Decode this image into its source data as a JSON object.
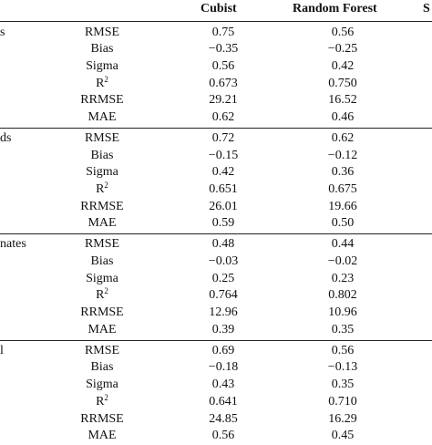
{
  "columns": [
    "Cubist",
    "Random Forest",
    "S"
  ],
  "groups": [
    {
      "label": "s",
      "rows": [
        {
          "metric": "RMSE",
          "cubist": "0.75",
          "rf": "0.56"
        },
        {
          "metric": "Bias",
          "cubist": "−0.35",
          "rf": "−0.25"
        },
        {
          "metric": "Sigma",
          "cubist": "0.56",
          "rf": "0.42"
        },
        {
          "metric": "R",
          "sup": "2",
          "cubist": "0.673",
          "rf": "0.750"
        },
        {
          "metric": "RRMSE",
          "cubist": "29.21",
          "rf": "16.52"
        },
        {
          "metric": "MAE",
          "cubist": "0.62",
          "rf": "0.46"
        }
      ]
    },
    {
      "label": "ds",
      "rows": [
        {
          "metric": "RMSE",
          "cubist": "0.72",
          "rf": "0.62"
        },
        {
          "metric": "Bias",
          "cubist": "−0.15",
          "rf": "−0.12"
        },
        {
          "metric": "Sigma",
          "cubist": "0.42",
          "rf": "0.36"
        },
        {
          "metric": "R",
          "sup": "2",
          "cubist": "0.651",
          "rf": "0.675"
        },
        {
          "metric": "RRMSE",
          "cubist": "26.01",
          "rf": "19.66"
        },
        {
          "metric": "MAE",
          "cubist": "0.59",
          "rf": "0.50"
        }
      ]
    },
    {
      "label": "nates",
      "rows": [
        {
          "metric": "RMSE",
          "cubist": "0.48",
          "rf": "0.44"
        },
        {
          "metric": "Bias",
          "cubist": "−0.03",
          "rf": "−0.02"
        },
        {
          "metric": "Sigma",
          "cubist": "0.25",
          "rf": "0.23"
        },
        {
          "metric": "R",
          "sup": "2",
          "cubist": "0.764",
          "rf": "0.802"
        },
        {
          "metric": "RRMSE",
          "cubist": "12.96",
          "rf": "10.96"
        },
        {
          "metric": "MAE",
          "cubist": "0.39",
          "rf": "0.35"
        }
      ]
    },
    {
      "label": "l",
      "rows": [
        {
          "metric": "RMSE",
          "cubist": "0.69",
          "rf": "0.56"
        },
        {
          "metric": "Bias",
          "cubist": "−0.18",
          "rf": "−0.13"
        },
        {
          "metric": "Sigma",
          "cubist": "0.43",
          "rf": "0.35"
        },
        {
          "metric": "R",
          "sup": "2",
          "cubist": "0.641",
          "rf": "0.710"
        },
        {
          "metric": "RRMSE",
          "cubist": "24.85",
          "rf": "16.29"
        },
        {
          "metric": "MAE",
          "cubist": "0.56",
          "rf": "0.45"
        }
      ]
    }
  ]
}
